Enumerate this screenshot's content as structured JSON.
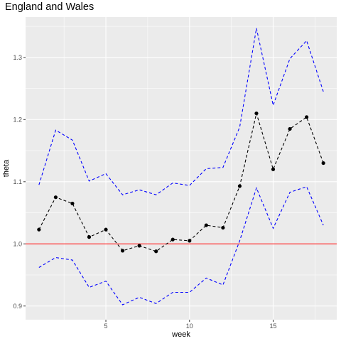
{
  "chart_data": {
    "type": "line",
    "title": "England and Wales",
    "xlabel": "week",
    "ylabel": "theta",
    "xlim": [
      0.2,
      18.8
    ],
    "ylim": [
      0.878,
      1.365
    ],
    "x_ticks": [
      5,
      10,
      15
    ],
    "y_ticks": [
      0.9,
      1.0,
      1.1,
      1.2,
      1.3
    ],
    "x_tick_labels": [
      "5",
      "10",
      "15"
    ],
    "y_tick_labels": [
      "0.9",
      "1.0",
      "1.1",
      "1.2",
      "1.3"
    ],
    "grid": true,
    "background": "#ebebeb",
    "x": [
      1,
      2,
      3,
      4,
      5,
      6,
      7,
      8,
      9,
      10,
      11,
      12,
      13,
      14,
      15,
      16,
      17,
      18
    ],
    "series": [
      {
        "role": "estimate",
        "style": "dashed-with-points",
        "color": "#000000",
        "values": [
          1.023,
          1.075,
          1.065,
          1.011,
          1.023,
          0.989,
          0.997,
          0.988,
          1.007,
          1.005,
          1.03,
          1.026,
          1.093,
          1.21,
          1.12,
          1.185,
          1.204,
          1.13
        ]
      },
      {
        "role": "upper",
        "style": "dashed",
        "color": "#0000ff",
        "values": [
          1.095,
          1.183,
          1.167,
          1.101,
          1.113,
          1.079,
          1.087,
          1.079,
          1.098,
          1.094,
          1.121,
          1.123,
          1.188,
          1.347,
          1.223,
          1.298,
          1.327,
          1.245
        ]
      },
      {
        "role": "lower",
        "style": "dashed",
        "color": "#0000ff",
        "values": [
          0.962,
          0.978,
          0.974,
          0.93,
          0.94,
          0.902,
          0.914,
          0.904,
          0.922,
          0.922,
          0.945,
          0.934,
          1.005,
          1.09,
          1.025,
          1.083,
          1.092,
          1.03
        ]
      }
    ],
    "reference_line": {
      "y": 1.0,
      "color": "#ff0000"
    }
  }
}
